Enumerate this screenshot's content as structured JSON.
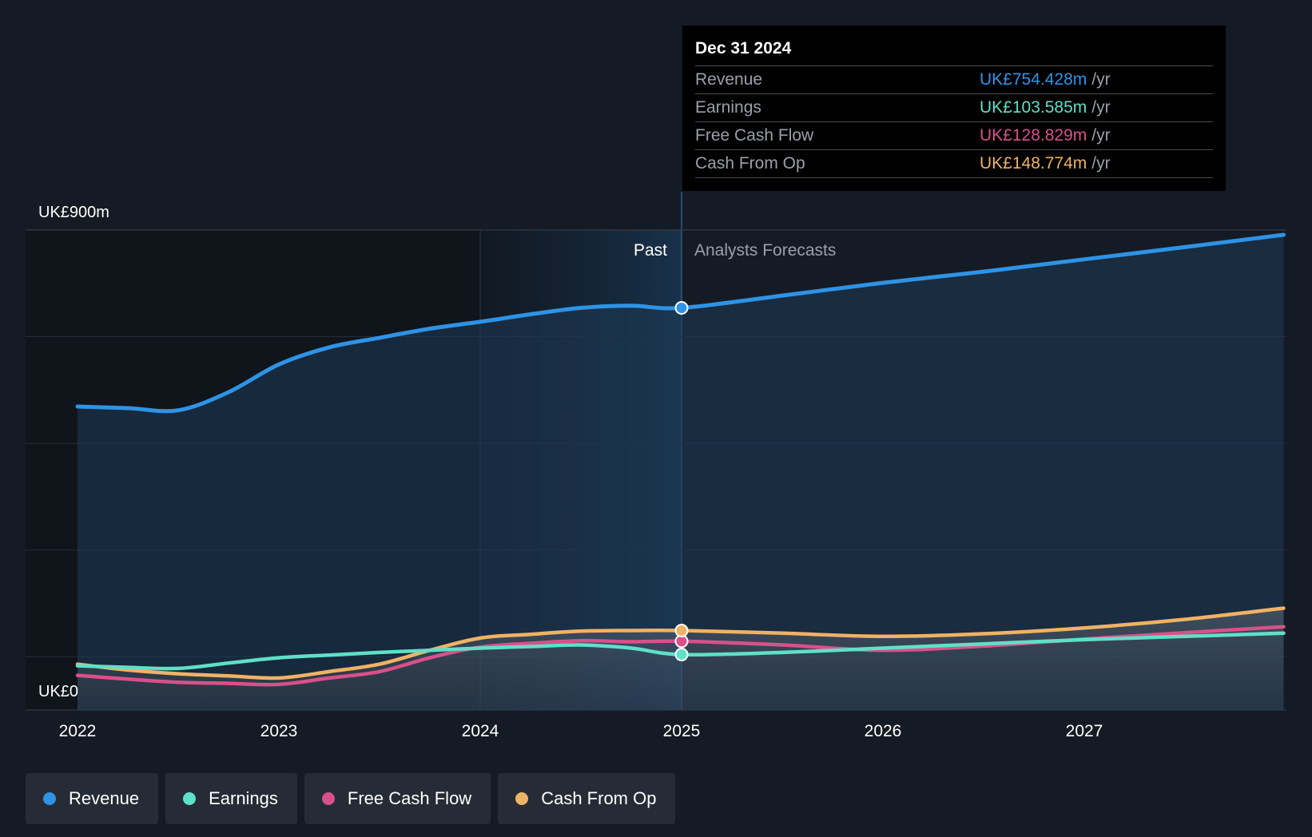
{
  "tooltip": {
    "date": "Dec 31 2024",
    "rows": [
      {
        "label": "Revenue",
        "value": "UK£754.428m",
        "unit": "/yr",
        "color": "#2e93e6"
      },
      {
        "label": "Earnings",
        "value": "UK£103.585m",
        "unit": "/yr",
        "color": "#5fe0c8"
      },
      {
        "label": "Free Cash Flow",
        "value": "UK£128.829m",
        "unit": "/yr",
        "color": "#d9508a"
      },
      {
        "label": "Cash From Op",
        "value": "UK£148.774m",
        "unit": "/yr",
        "color": "#f0b264"
      }
    ]
  },
  "sections": {
    "past": "Past",
    "forecast": "Analysts Forecasts"
  },
  "legend": [
    {
      "label": "Revenue",
      "color": "#2e93e6"
    },
    {
      "label": "Earnings",
      "color": "#5fe0c8"
    },
    {
      "label": "Free Cash Flow",
      "color": "#d9508a"
    },
    {
      "label": "Cash From Op",
      "color": "#f0b264"
    }
  ],
  "chart_data": {
    "type": "line",
    "y_top_label": "UK£900m",
    "y_bottom_label": "UK£0",
    "ylim": [
      0,
      900
    ],
    "xlim": [
      2021.75,
      2027.99
    ],
    "x_ticks": [
      2022,
      2023,
      2024,
      2025,
      2026,
      2027
    ],
    "x_tick_labels": [
      "2022",
      "2023",
      "2024",
      "2025",
      "2026",
      "2027"
    ],
    "past_end": 2025.0,
    "highlight_start": 2024.0,
    "grid": true,
    "legend_position": "bottom-left",
    "series": [
      {
        "name": "Revenue",
        "color": "#2e93e6",
        "x": [
          2022.0,
          2022.25,
          2022.5,
          2022.75,
          2023.0,
          2023.25,
          2023.5,
          2023.75,
          2024.0,
          2024.25,
          2024.5,
          2024.75,
          2025.0,
          2025.5,
          2026.0,
          2026.5,
          2027.0,
          2027.5,
          2027.99
        ],
        "y": [
          569,
          566,
          562,
          596,
          648,
          680,
          698,
          715,
          728,
          742,
          754,
          758,
          754,
          777,
          801,
          822,
          845,
          868,
          891
        ]
      },
      {
        "name": "Earnings",
        "color": "#5fe0c8",
        "x": [
          2022.0,
          2022.25,
          2022.5,
          2022.75,
          2023.0,
          2023.25,
          2023.5,
          2023.75,
          2024.0,
          2024.25,
          2024.5,
          2024.75,
          2025.0,
          2025.5,
          2026.0,
          2026.5,
          2027.0,
          2027.5,
          2027.99
        ],
        "y": [
          83,
          80,
          78,
          88,
          98,
          103,
          108,
          112,
          116,
          119,
          122,
          116,
          104,
          108,
          116,
          124,
          132,
          138,
          144
        ]
      },
      {
        "name": "Free Cash Flow",
        "color": "#d9508a",
        "x": [
          2022.0,
          2022.25,
          2022.5,
          2022.75,
          2023.0,
          2023.25,
          2023.5,
          2023.75,
          2024.0,
          2024.25,
          2024.5,
          2024.75,
          2025.0,
          2025.5,
          2026.0,
          2026.5,
          2027.0,
          2027.5,
          2027.99
        ],
        "y": [
          65,
          58,
          52,
          50,
          48,
          60,
          72,
          98,
          118,
          125,
          130,
          128,
          129,
          122,
          112,
          120,
          133,
          145,
          156
        ]
      },
      {
        "name": "Cash From Op",
        "color": "#f0b264",
        "x": [
          2022.0,
          2022.25,
          2022.5,
          2022.75,
          2023.0,
          2023.25,
          2023.5,
          2023.75,
          2024.0,
          2024.25,
          2024.5,
          2024.75,
          2025.0,
          2025.5,
          2026.0,
          2026.5,
          2027.0,
          2027.5,
          2027.99
        ],
        "y": [
          86,
          75,
          68,
          64,
          60,
          72,
          86,
          112,
          135,
          142,
          148,
          149,
          149,
          144,
          138,
          143,
          154,
          170,
          191
        ]
      }
    ]
  }
}
